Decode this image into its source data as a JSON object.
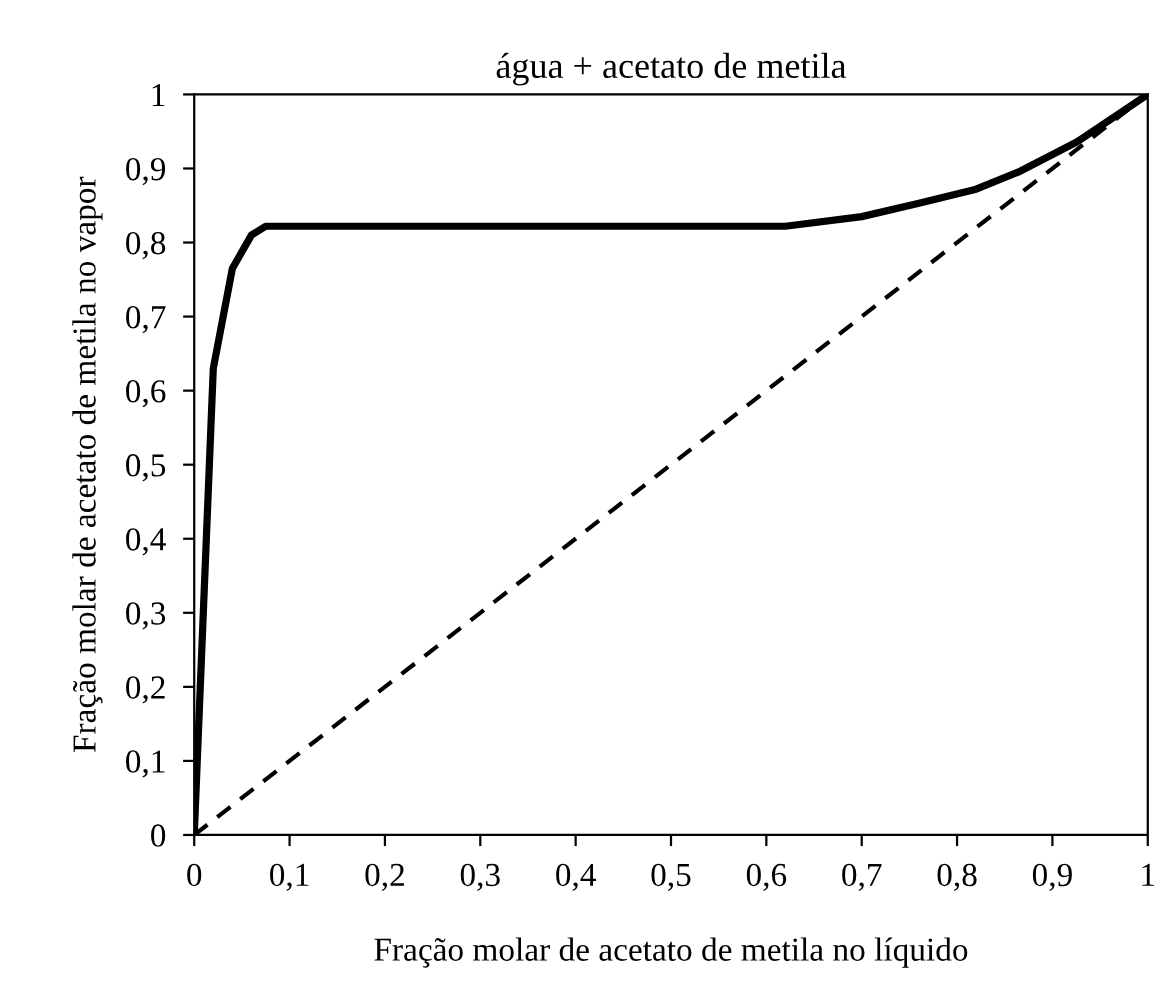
{
  "chart_data": {
    "type": "line",
    "title": "água + acetato de metila",
    "xlabel": "Fração molar de acetato de metila no líquido",
    "ylabel": "Fração molar de acetato de metila no vapor",
    "series": [
      {
        "color": "#000000",
        "line_style": "solid",
        "x": [
          0,
          0.02,
          0.04,
          0.06,
          0.075,
          0.3,
          0.62,
          0.7,
          0.76,
          0.82,
          0.864,
          0.926,
          1
        ],
        "values": [
          0,
          0.63,
          0.765,
          0.81,
          0.822,
          0.822,
          0.822,
          0.835,
          0.853,
          0.872,
          0.895,
          0.936,
          1
        ]
      },
      {
        "color": "#000000",
        "line_style": "dashed",
        "x": [
          0,
          1
        ],
        "values": [
          0,
          1
        ]
      }
    ],
    "xlim": [
      0,
      1
    ],
    "ylim": [
      0,
      1
    ],
    "xticks": [
      0,
      {
        "value": 0.1,
        "label": "0,1"
      },
      {
        "value": 0.2,
        "label": "0,2"
      },
      {
        "value": 0.3,
        "label": "0,3"
      },
      {
        "value": 0.4,
        "label": "0,4"
      },
      {
        "value": 0.5,
        "label": "0,5"
      },
      {
        "value": 0.6,
        "label": "0,6"
      },
      {
        "value": 0.7,
        "label": "0,7"
      },
      {
        "value": 0.8,
        "label": "0,8"
      },
      {
        "value": 0.9,
        "label": "0,9"
      },
      1
    ],
    "yticks": [
      0,
      {
        "value": 0.1,
        "label": "0,1"
      },
      {
        "value": 0.2,
        "label": "0,2"
      },
      {
        "value": 0.3,
        "label": "0,3"
      },
      {
        "value": 0.4,
        "label": "0,4"
      },
      {
        "value": 0.5,
        "label": "0,5"
      },
      {
        "value": 0.6,
        "label": "0,6"
      },
      {
        "value": 0.7,
        "label": "0,7"
      },
      {
        "value": 0.8,
        "label": "0,8"
      },
      {
        "value": 0.9,
        "label": "0,9"
      },
      1
    ]
  }
}
